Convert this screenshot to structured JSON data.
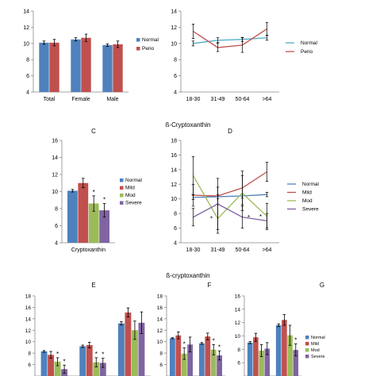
{
  "colors": {
    "normal": "#4F81BD",
    "perio": "#C0504D",
    "mild": "#C0504D",
    "mod": "#9BBB59",
    "severe": "#8064A2",
    "normal_line": "#4BACC6"
  },
  "section_title_1": "ß-Cryptoxanthin",
  "section_title_2": "ß-cryptoxanthin",
  "chart_data": [
    {
      "id": "A",
      "type": "bar",
      "label": "",
      "categories": [
        "Total",
        "Female",
        "Male"
      ],
      "ylim": [
        4,
        14
      ],
      "yticks": [
        4,
        6,
        8,
        10,
        12,
        14
      ],
      "series": [
        {
          "name": "Normal",
          "color": "#4F81BD",
          "values": [
            10.1,
            10.5,
            9.8
          ],
          "errors": [
            0.2,
            0.2,
            0.15
          ],
          "marks": [
            "",
            "",
            ""
          ]
        },
        {
          "name": "Perio",
          "color": "#C0504D",
          "values": [
            10.1,
            10.7,
            9.9
          ],
          "errors": [
            0.4,
            0.45,
            0.4
          ],
          "marks": [
            "",
            "",
            ""
          ]
        }
      ],
      "legend": "right"
    },
    {
      "id": "B",
      "type": "line",
      "label": "",
      "categories": [
        "18-30",
        "31-49",
        "50-64",
        ">64"
      ],
      "ylim": [
        4,
        14
      ],
      "yticks": [
        4,
        6,
        8,
        10,
        12,
        14
      ],
      "series": [
        {
          "name": "Normal",
          "color": "#4BACC6",
          "values": [
            10.0,
            10.4,
            10.5,
            10.7
          ],
          "errors": [
            0.3,
            0.3,
            0.25,
            0.3
          ],
          "marks": [
            "",
            "",
            "",
            ""
          ]
        },
        {
          "name": "Perio",
          "color": "#C0504D",
          "values": [
            11.5,
            9.5,
            9.8,
            11.8
          ],
          "errors": [
            0.9,
            0.5,
            0.9,
            0.8
          ],
          "marks": [
            "",
            "",
            "",
            ""
          ]
        }
      ],
      "legend": "right"
    },
    {
      "id": "C",
      "type": "bar",
      "label": "C",
      "categories": [
        "Cryptoxanthin"
      ],
      "ylim": [
        4,
        16
      ],
      "yticks": [
        4,
        6,
        8,
        10,
        12,
        14,
        16
      ],
      "series": [
        {
          "name": "Normal",
          "color": "#4F81BD",
          "values": [
            10.1
          ],
          "errors": [
            0.15
          ],
          "marks": [
            ""
          ]
        },
        {
          "name": "Mild",
          "color": "#C0504D",
          "values": [
            11.0
          ],
          "errors": [
            0.55
          ],
          "marks": [
            ""
          ]
        },
        {
          "name": "Mod",
          "color": "#9BBB59",
          "values": [
            8.6
          ],
          "errors": [
            0.9
          ],
          "marks": [
            "*"
          ]
        },
        {
          "name": "Severe",
          "color": "#8064A2",
          "values": [
            7.8
          ],
          "errors": [
            0.8
          ],
          "marks": [
            "*"
          ]
        }
      ],
      "legend": "right"
    },
    {
      "id": "D",
      "type": "line",
      "label": "D",
      "categories": [
        "18-30",
        "31-49",
        "50-64",
        ">64"
      ],
      "ylim": [
        4,
        18
      ],
      "yticks": [
        4,
        6,
        8,
        10,
        12,
        14,
        16,
        18
      ],
      "series": [
        {
          "name": "Normal",
          "color": "#4F81BD",
          "values": [
            10.2,
            10.3,
            10.4,
            10.6
          ],
          "errors": [
            0.3,
            0.3,
            0.3,
            0.3
          ],
          "marks": [
            "",
            "",
            "",
            ""
          ]
        },
        {
          "name": "Mild",
          "color": "#C0504D",
          "values": [
            10.5,
            10.4,
            11.5,
            13.7
          ],
          "errors": [
            1.5,
            1.2,
            2.3,
            1.3
          ],
          "marks": [
            "",
            "",
            "",
            ""
          ]
        },
        {
          "name": "Mod",
          "color": "#9BBB59",
          "values": [
            13.2,
            7.3,
            10.8,
            7.6
          ],
          "errors": [
            2.6,
            2.0,
            2.4,
            1.8
          ],
          "marks": [
            "",
            "*",
            "",
            "*"
          ]
        },
        {
          "name": "Severe",
          "color": "#8064A2",
          "values": [
            7.5,
            9.3,
            7.5,
            7.0
          ],
          "errors": [
            1.2,
            3.5,
            1.5,
            1.0
          ],
          "marks": [
            "",
            "",
            "*",
            ""
          ]
        }
      ],
      "legend": "right"
    },
    {
      "id": "E",
      "type": "bar",
      "label": "E",
      "categories": [
        "",
        "",
        ""
      ],
      "ylim": [
        4,
        18
      ],
      "yticks": [
        6,
        8,
        10,
        12,
        14,
        16,
        18
      ],
      "series": [
        {
          "name": "Normal",
          "color": "#4F81BD",
          "values": [
            8.3,
            9.2,
            13.2
          ],
          "errors": [
            0.15,
            0.2,
            0.3
          ],
          "marks": [
            "",
            "",
            ""
          ]
        },
        {
          "name": "Mild",
          "color": "#C0504D",
          "values": [
            7.7,
            9.4,
            15.1
          ],
          "errors": [
            0.6,
            0.5,
            0.8
          ],
          "marks": [
            "",
            "",
            ""
          ]
        },
        {
          "name": "Mod",
          "color": "#9BBB59",
          "values": [
            6.5,
            6.4,
            12.0
          ],
          "errors": [
            0.7,
            0.8,
            1.6
          ],
          "marks": [
            "*",
            "*",
            ""
          ]
        },
        {
          "name": "Severe",
          "color": "#8064A2",
          "values": [
            5.2,
            6.3,
            13.3
          ],
          "errors": [
            0.7,
            0.8,
            1.9
          ],
          "marks": [
            "*",
            "*",
            ""
          ]
        }
      ],
      "legend": "none"
    },
    {
      "id": "F",
      "type": "bar",
      "label": "F",
      "categories": [
        "",
        ""
      ],
      "ylim": [
        4,
        18
      ],
      "yticks": [
        6,
        8,
        10,
        12,
        14,
        16,
        18
      ],
      "series": [
        {
          "name": "Normal",
          "color": "#4F81BD",
          "values": [
            10.6,
            9.7
          ],
          "errors": [
            0.1,
            0.15
          ],
          "marks": [
            "",
            ""
          ]
        },
        {
          "name": "Mild",
          "color": "#C0504D",
          "values": [
            11.1,
            10.9
          ],
          "errors": [
            0.6,
            0.6
          ],
          "marks": [
            "",
            ""
          ]
        },
        {
          "name": "Mod",
          "color": "#9BBB59",
          "values": [
            7.9,
            8.6
          ],
          "errors": [
            1.0,
            0.9
          ],
          "marks": [
            "*",
            "*"
          ]
        },
        {
          "name": "Severe",
          "color": "#8064A2",
          "values": [
            9.5,
            7.6
          ],
          "errors": [
            1.3,
            0.8
          ],
          "marks": [
            "",
            "*"
          ]
        }
      ],
      "legend": "none"
    },
    {
      "id": "G",
      "type": "bar",
      "label": "G",
      "categories": [
        "",
        ""
      ],
      "ylim": [
        4,
        16
      ],
      "yticks": [
        6,
        8,
        10,
        12,
        14,
        16
      ],
      "series": [
        {
          "name": "Normal",
          "color": "#4F81BD",
          "values": [
            9.0,
            11.6
          ],
          "errors": [
            0.15,
            0.2
          ],
          "marks": [
            "",
            ""
          ]
        },
        {
          "name": "Mild",
          "color": "#C0504D",
          "values": [
            9.8,
            12.4
          ],
          "errors": [
            0.6,
            0.8
          ],
          "marks": [
            "",
            ""
          ]
        },
        {
          "name": "Mod",
          "color": "#9BBB59",
          "values": [
            7.8,
            10.1
          ],
          "errors": [
            0.9,
            1.5
          ],
          "marks": [
            "",
            ""
          ]
        },
        {
          "name": "Severe",
          "color": "#8064A2",
          "values": [
            8.1,
            7.9
          ],
          "errors": [
            0.9,
            0.9
          ],
          "marks": [
            "",
            "*"
          ]
        }
      ],
      "legend": "right-top"
    }
  ]
}
